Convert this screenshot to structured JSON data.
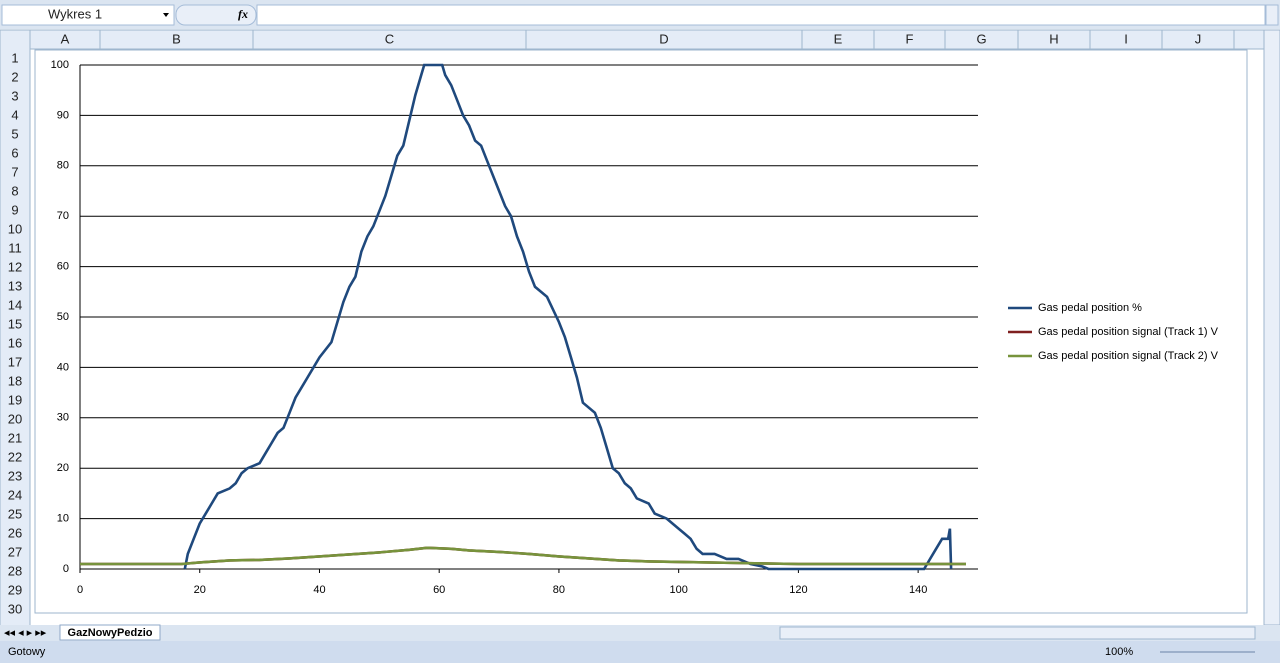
{
  "ui": {
    "name_box": "Wykres 1",
    "formula_icon": "fx",
    "columns": [
      "A",
      "B",
      "C",
      "D",
      "E",
      "F",
      "G",
      "H",
      "I",
      "J"
    ],
    "rows": [
      1,
      2,
      3,
      4,
      5,
      6,
      7,
      8,
      9,
      10,
      11,
      12,
      13,
      14,
      15,
      16,
      17,
      18,
      19,
      20,
      21,
      22,
      23,
      24,
      25,
      26,
      27,
      28,
      29,
      30
    ],
    "sheet_tab": "GazNowyPedzio",
    "status": "Gotowy",
    "zoom": "100%"
  },
  "chart_data": {
    "type": "line",
    "xlim": [
      0,
      150
    ],
    "xticks": [
      0,
      20,
      40,
      60,
      80,
      100,
      120,
      140
    ],
    "ylim": [
      0,
      100
    ],
    "yticks": [
      0,
      10,
      20,
      30,
      40,
      50,
      60,
      70,
      80,
      90,
      100
    ],
    "grid": true,
    "legend": "right",
    "series": [
      {
        "name": "Gas pedal position %",
        "color": "#1f497d",
        "x": [
          17.5,
          18,
          19,
          20,
          21,
          22,
          23,
          25,
          26,
          27,
          28,
          30,
          31,
          32,
          33,
          34,
          35,
          36,
          37,
          38,
          39,
          40,
          42,
          43,
          44,
          45,
          46,
          47,
          48,
          49,
          50,
          51,
          52,
          53,
          54,
          55,
          56,
          57,
          57.5,
          60.5,
          61,
          62,
          63,
          64,
          65,
          66,
          67,
          68,
          69,
          70,
          71,
          72,
          73,
          74,
          75,
          76,
          78,
          80,
          81,
          82,
          83,
          84,
          86,
          87,
          88,
          89,
          90,
          91,
          92,
          93,
          95,
          96,
          98,
          100,
          101,
          102,
          103,
          104,
          106,
          108,
          110,
          112,
          114,
          115,
          141,
          141.5,
          142,
          143,
          144,
          145,
          145.3,
          145.5
        ],
        "values": [
          0,
          3,
          6,
          9,
          11,
          13,
          15,
          16,
          17,
          19,
          20,
          21,
          23,
          25,
          27,
          28,
          31,
          34,
          36,
          38,
          40,
          42,
          45,
          49,
          53,
          56,
          58,
          63,
          66,
          68,
          71,
          74,
          78,
          82,
          84,
          89,
          94,
          98,
          100,
          100,
          98,
          96,
          93,
          90,
          88,
          85,
          84,
          81,
          78,
          75,
          72,
          70,
          66,
          63,
          59,
          56,
          54,
          49,
          46,
          42,
          38,
          33,
          31,
          28,
          24,
          20,
          19,
          17,
          16,
          14,
          13,
          11,
          10,
          8,
          7,
          6,
          4,
          3,
          3,
          2,
          2,
          1,
          0.5,
          0,
          0,
          1,
          2,
          4,
          6,
          6,
          8,
          0
        ]
      },
      {
        "name": "Gas pedal position signal (Track 1) V",
        "color": "#7f1f1f",
        "x": [
          0,
          17,
          20,
          25,
          30,
          35,
          40,
          45,
          50,
          55,
          58,
          62,
          65,
          70,
          75,
          80,
          85,
          90,
          95,
          100,
          110,
          120,
          148
        ],
        "values": [
          1,
          1,
          1.3,
          1.7,
          1.8,
          2.1,
          2.5,
          2.9,
          3.3,
          3.8,
          4.2,
          4,
          3.7,
          3.4,
          3,
          2.5,
          2.1,
          1.7,
          1.5,
          1.4,
          1.2,
          1,
          1
        ]
      },
      {
        "name": "Gas pedal position signal (Track 2) V",
        "color": "#77933c",
        "x": [
          0,
          17,
          20,
          25,
          30,
          35,
          40,
          45,
          50,
          55,
          58,
          62,
          65,
          70,
          75,
          80,
          85,
          90,
          95,
          100,
          110,
          120,
          148
        ],
        "values": [
          1,
          1,
          1.3,
          1.7,
          1.8,
          2.1,
          2.5,
          2.9,
          3.3,
          3.8,
          4.2,
          4,
          3.7,
          3.4,
          3,
          2.5,
          2.1,
          1.7,
          1.5,
          1.4,
          1.2,
          1,
          1
        ]
      }
    ]
  }
}
